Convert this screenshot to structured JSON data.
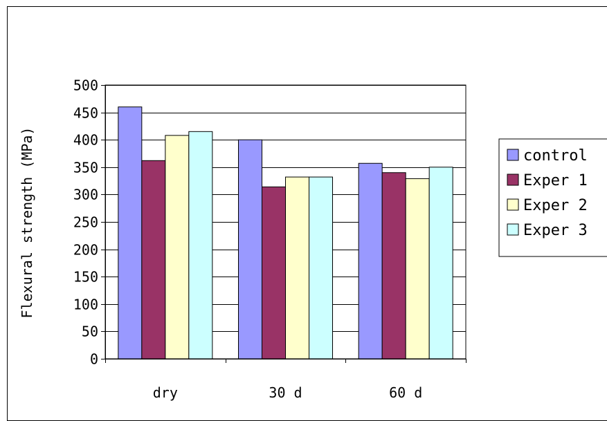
{
  "chart_data": {
    "type": "bar",
    "categories": [
      "dry",
      "30 d",
      "60 d"
    ],
    "series": [
      {
        "name": "control",
        "color": "#9999ff",
        "values": [
          460,
          400,
          357
        ]
      },
      {
        "name": "Exper 1",
        "color": "#993366",
        "values": [
          362,
          314,
          340
        ]
      },
      {
        "name": "Exper 2",
        "color": "#ffffcc",
        "values": [
          408,
          332,
          329
        ]
      },
      {
        "name": "Exper 3",
        "color": "#ccffff",
        "values": [
          415,
          332,
          350
        ]
      }
    ],
    "ylabel": "Flexural strength (MPa)",
    "xlabel": "",
    "ylim": [
      0,
      500
    ],
    "yticks": [
      0,
      50,
      100,
      150,
      200,
      250,
      300,
      350,
      400,
      450,
      500
    ],
    "grid": true,
    "legend_position": "right"
  }
}
